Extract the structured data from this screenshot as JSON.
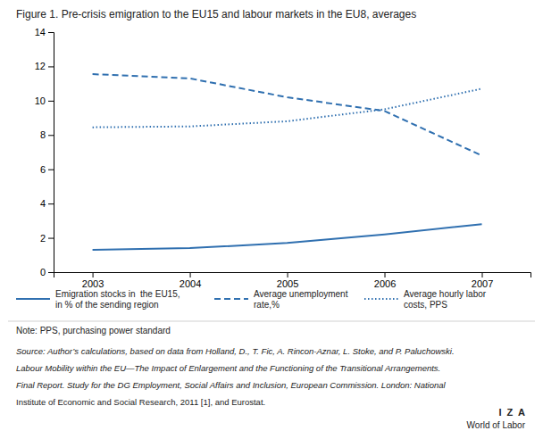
{
  "chart_data": {
    "type": "line",
    "title": "Figure 1. Pre-crisis emigration to the EU15 and labour markets in the EU8, averages",
    "x": [
      2003,
      2004,
      2005,
      2006,
      2007
    ],
    "series": [
      {
        "name": "Emigration stocks in  the EU15,\nin % of the sending region",
        "color": "#3070b0",
        "line_style": "solid",
        "values": [
          1.3,
          1.4,
          1.7,
          2.2,
          2.8
        ]
      },
      {
        "name": "Average unemployment\nrate,%",
        "color": "#3070b0",
        "line_style": "dashed",
        "values": [
          11.55,
          11.3,
          10.2,
          9.4,
          6.8
        ]
      },
      {
        "name": "Average hourly labor\ncosts, PPS",
        "color": "#3070b0",
        "line_style": "dotted",
        "values": [
          8.45,
          8.5,
          8.8,
          9.5,
          10.7
        ]
      }
    ],
    "xlim": [
      2002.6,
      2007.5
    ],
    "xticks": [
      2003,
      2004,
      2005,
      2006,
      2007
    ],
    "ylim": [
      0,
      14
    ],
    "yticks": [
      0,
      2,
      4,
      6,
      8,
      10,
      12,
      14
    ],
    "grid": false,
    "legend": "bottom",
    "annotations": [
      "Note: PPS, purchasing power standard",
      "Source: Author’s calculations, based on data from Holland, D., T. Fic, A. Rincon-Aznar, L. Stoke, and P. Paluchowski.",
      "Labour Mobility within the EU—The Impact of Enlargement and the Functioning of the Transitional Arrangements.",
      "Final Report. Study for the DG Employment, Social Affairs and Inclusion, European Commission. London: National",
      "Institute of Economic and Social Research, 2011 [1], and Eurostat.",
      "I  Z  A",
      "World of Labor"
    ]
  }
}
